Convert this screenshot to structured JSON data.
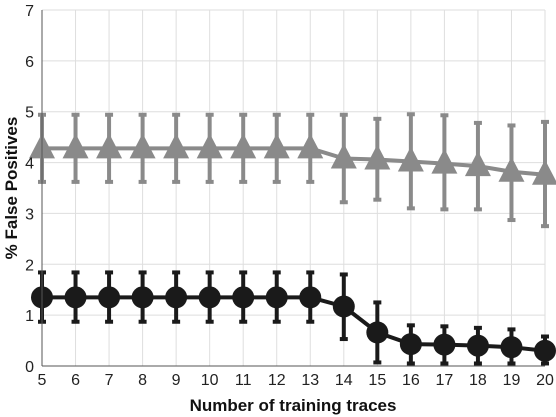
{
  "chart_data": {
    "type": "line",
    "xlabel": "Number of training traces",
    "ylabel": "% False Positives",
    "xlim": [
      5,
      20
    ],
    "ylim": [
      0,
      7
    ],
    "x_ticks": [
      "5",
      "6",
      "7",
      "8",
      "9",
      "10",
      "11",
      "12",
      "13",
      "14",
      "15",
      "16",
      "17",
      "18",
      "19",
      "20"
    ],
    "y_ticks": [
      "0",
      "1",
      "2",
      "3",
      "4",
      "5",
      "6",
      "7"
    ],
    "grid": true,
    "x": [
      5,
      6,
      7,
      8,
      9,
      10,
      11,
      12,
      13,
      14,
      15,
      16,
      17,
      18,
      19,
      20
    ],
    "series": [
      {
        "marker": "triangle",
        "color": "#8a8a8a",
        "values": [
          4.28,
          4.28,
          4.28,
          4.28,
          4.28,
          4.28,
          4.28,
          4.28,
          4.28,
          4.08,
          4.06,
          4.02,
          3.98,
          3.93,
          3.82,
          3.76
        ],
        "err_low": [
          3.62,
          3.62,
          3.62,
          3.62,
          3.62,
          3.62,
          3.62,
          3.62,
          3.62,
          3.22,
          3.27,
          3.1,
          3.08,
          3.08,
          2.87,
          2.75
        ],
        "err_high": [
          4.94,
          4.94,
          4.94,
          4.94,
          4.94,
          4.94,
          4.94,
          4.94,
          4.94,
          4.94,
          4.86,
          4.95,
          4.93,
          4.78,
          4.73,
          4.8
        ]
      },
      {
        "marker": "circle",
        "color": "#1a1a1a",
        "values": [
          1.35,
          1.35,
          1.35,
          1.35,
          1.35,
          1.35,
          1.35,
          1.35,
          1.35,
          1.17,
          0.66,
          0.43,
          0.42,
          0.4,
          0.37,
          0.3
        ],
        "err_low": [
          0.87,
          0.87,
          0.87,
          0.87,
          0.87,
          0.87,
          0.87,
          0.87,
          0.87,
          0.53,
          0.07,
          0.05,
          0.05,
          0.05,
          0.05,
          0.05
        ],
        "err_high": [
          1.84,
          1.84,
          1.84,
          1.84,
          1.84,
          1.84,
          1.84,
          1.84,
          1.84,
          1.8,
          1.25,
          0.8,
          0.78,
          0.75,
          0.72,
          0.58
        ]
      }
    ]
  }
}
